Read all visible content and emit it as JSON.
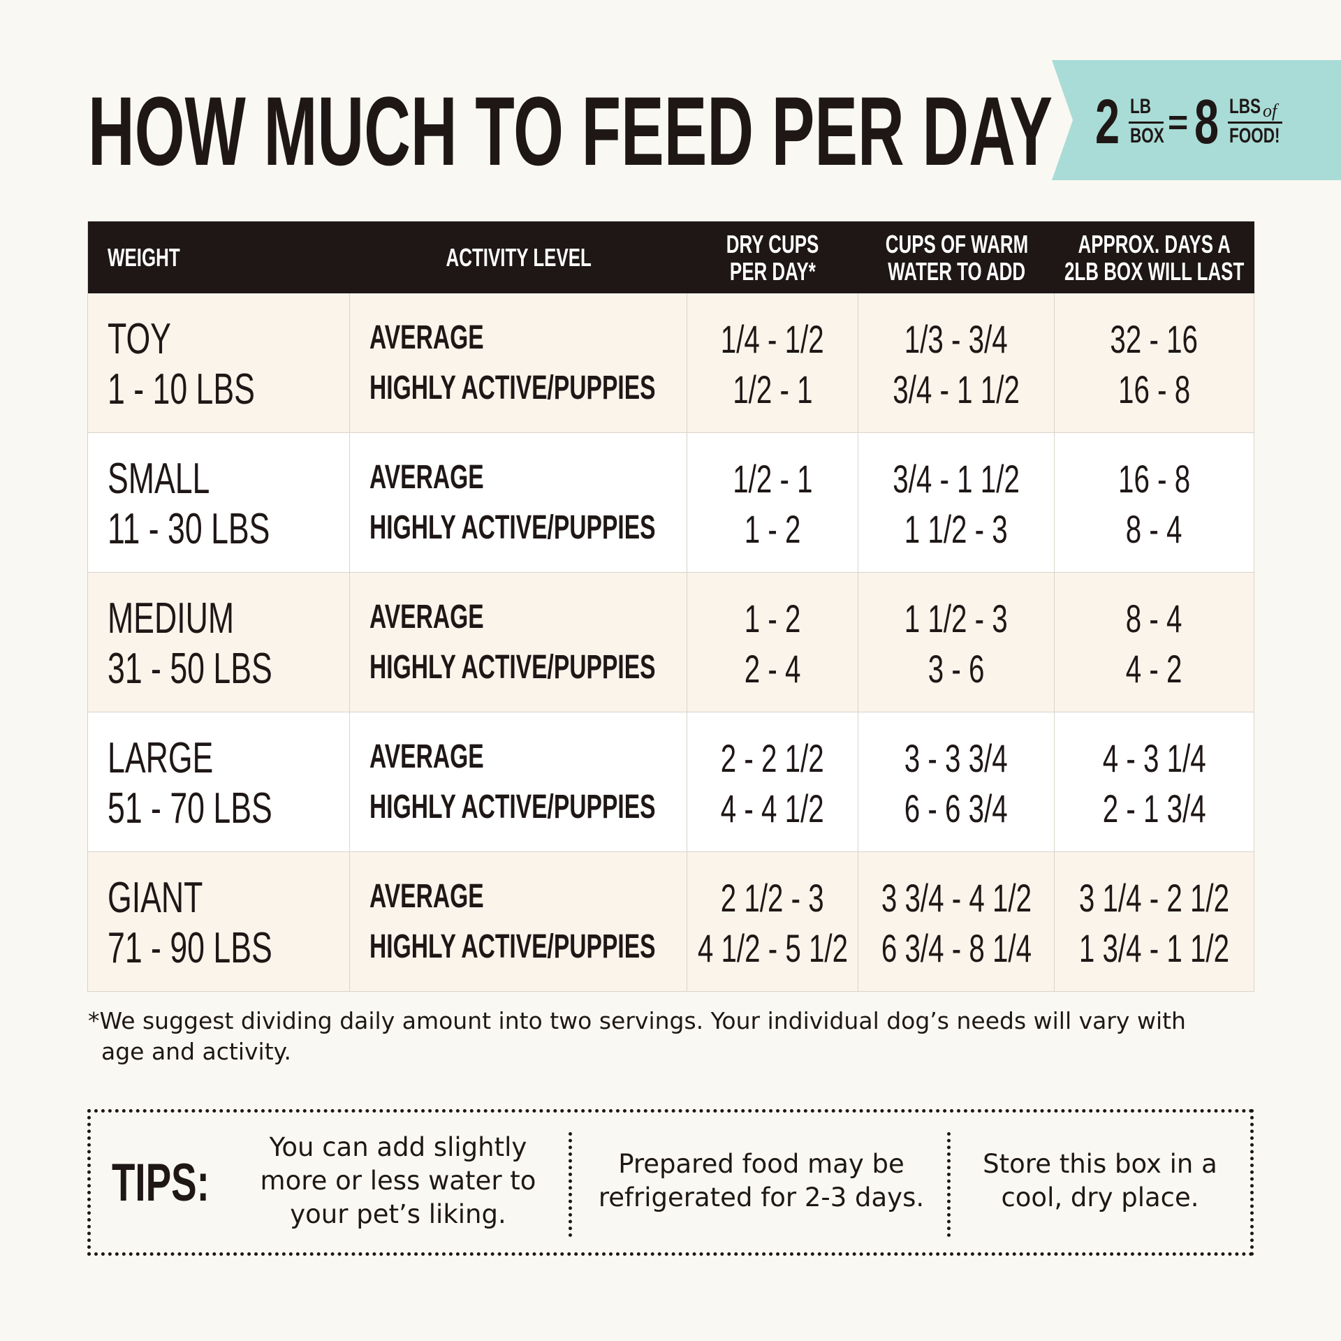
{
  "header": {
    "title": "HOW MUCH TO FEED PER DAY"
  },
  "badge": {
    "left_number": "2",
    "left_unit_top": "LB",
    "left_unit_bottom": "BOX",
    "equals": "=",
    "right_number": "8",
    "right_unit_top": "LBS",
    "right_unit_of": "of",
    "right_unit_bottom": "FOOD!"
  },
  "table": {
    "columns": [
      [
        "WEIGHT"
      ],
      [
        "ACTIVITY LEVEL"
      ],
      [
        "DRY CUPS",
        "PER DAY*"
      ],
      [
        "CUPS OF WARM",
        "WATER TO ADD"
      ],
      [
        "APPROX. DAYS A",
        "2LB BOX WILL LAST"
      ]
    ],
    "rows": [
      [
        [
          "TOY",
          "1 - 10 LBS"
        ],
        [
          "AVERAGE",
          "HIGHLY ACTIVE/PUPPIES"
        ],
        [
          "1/4 - 1/2",
          "1/2 - 1"
        ],
        [
          "1/3 - 3/4",
          "3/4 - 1 1/2"
        ],
        [
          "32 - 16",
          "16 - 8"
        ]
      ],
      [
        [
          "SMALL",
          "11 - 30 LBS"
        ],
        [
          "AVERAGE",
          "HIGHLY ACTIVE/PUPPIES"
        ],
        [
          "1/2 - 1",
          "1 - 2"
        ],
        [
          "3/4 - 1 1/2",
          "1 1/2 - 3"
        ],
        [
          "16 - 8",
          "8 - 4"
        ]
      ],
      [
        [
          "MEDIUM",
          "31 - 50 LBS"
        ],
        [
          "AVERAGE",
          "HIGHLY ACTIVE/PUPPIES"
        ],
        [
          "1 - 2",
          "2 - 4"
        ],
        [
          "1 1/2 - 3",
          "3 - 6"
        ],
        [
          "8 - 4",
          "4 - 2"
        ]
      ],
      [
        [
          "LARGE",
          "51 - 70 LBS"
        ],
        [
          "AVERAGE",
          "HIGHLY ACTIVE/PUPPIES"
        ],
        [
          "2 - 2 1/2",
          "4 - 4 1/2"
        ],
        [
          "3 - 3 3/4",
          "6 - 6 3/4"
        ],
        [
          "4 - 3 1/4",
          "2 - 1 3/4"
        ]
      ],
      [
        [
          "GIANT",
          "71 - 90 LBS"
        ],
        [
          "AVERAGE",
          "HIGHLY ACTIVE/PUPPIES"
        ],
        [
          "2 1/2 - 3",
          "4 1/2 - 5 1/2"
        ],
        [
          "3 3/4 - 4 1/2",
          "6 3/4 - 8 1/4"
        ],
        [
          "3 1/4 - 2 1/2",
          "1 3/4 - 1 1/2"
        ]
      ]
    ]
  },
  "footnote": "*We suggest dividing daily amount into two servings. Your individual dog’s needs will vary with age and activity.",
  "tips": {
    "label": "TIPS:",
    "items": [
      "You can add slightly more or less water to your pet’s liking.",
      "Prepared food may be refrigerated for 2-3 days.",
      "Store this box in a cool, dry place."
    ]
  }
}
